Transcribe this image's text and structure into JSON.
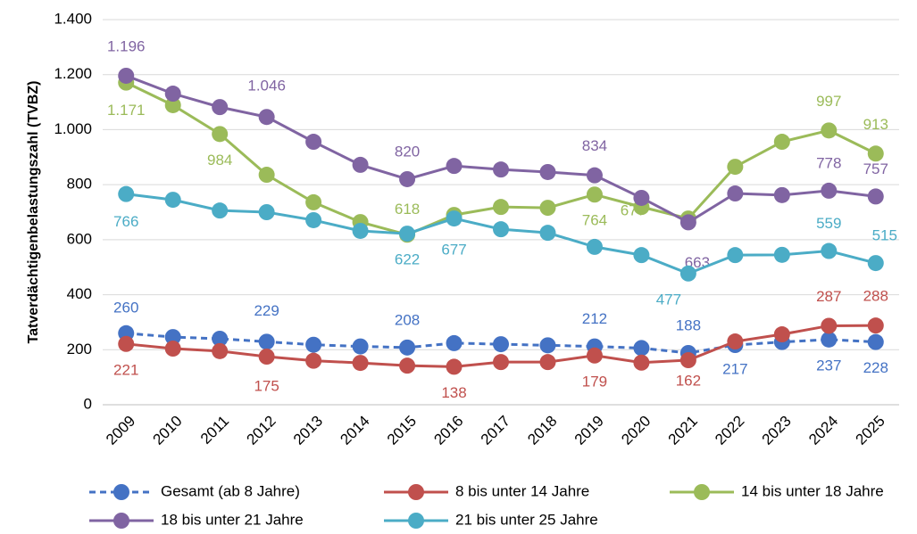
{
  "chart_data": {
    "type": "line",
    "y_label": "Tatverdächtigenbelastungszahl (TVBZ)",
    "categories": [
      "2009",
      "2010",
      "2011",
      "2012",
      "2013",
      "2014",
      "2015",
      "2016",
      "2017",
      "2018",
      "2019",
      "2020",
      "2021",
      "2022",
      "2023",
      "2024",
      "2025"
    ],
    "ylim": [
      0,
      1400
    ],
    "yticks": [
      0,
      200,
      400,
      600,
      800,
      {
        "value": 1000,
        "label": "1.000"
      },
      {
        "value": 1200,
        "label": "1.200"
      },
      {
        "value": 1400,
        "label": "1.400"
      }
    ],
    "grid": true,
    "legend": "bottom",
    "series": [
      {
        "name": "Gesamt (ab 8 Jahre)",
        "color": "#4472c4",
        "dashed": true,
        "values": [
          260,
          246,
          240,
          229,
          218,
          212,
          208,
          224,
          220,
          216,
          212,
          206,
          188,
          217,
          228,
          237,
          228
        ],
        "value_labels": [
          "260",
          null,
          null,
          "229",
          null,
          null,
          "208",
          null,
          null,
          null,
          "212",
          null,
          "188",
          "217",
          null,
          "237",
          "228"
        ]
      },
      {
        "name": "8 bis unter 14 Jahre",
        "color": "#c0504d",
        "values": [
          221,
          204,
          195,
          175,
          160,
          152,
          142,
          138,
          155,
          155,
          179,
          153,
          162,
          230,
          256,
          287,
          288
        ],
        "value_labels": [
          "221",
          null,
          null,
          "175",
          null,
          null,
          null,
          "138",
          null,
          null,
          "179",
          null,
          "162",
          null,
          null,
          "287",
          "288"
        ]
      },
      {
        "name": "14 bis unter 18 Jahre",
        "color": "#9bbb59",
        "values": [
          1171,
          1089,
          984,
          836,
          736,
          664,
          618,
          690,
          719,
          716,
          764,
          719,
          677,
          865,
          956,
          997,
          913
        ],
        "value_labels": [
          "1.171",
          null,
          "984",
          null,
          null,
          null,
          "618",
          null,
          null,
          null,
          "764",
          null,
          "677",
          null,
          null,
          "997",
          "913"
        ]
      },
      {
        "name": "18 bis unter 21 Jahre",
        "color": "#8064a2",
        "values": [
          1196,
          1131,
          1082,
          1046,
          956,
          872,
          820,
          868,
          855,
          846,
          834,
          752,
          663,
          768,
          762,
          778,
          757
        ],
        "value_labels": [
          "1.196",
          null,
          null,
          "1.046",
          null,
          null,
          "820",
          null,
          null,
          null,
          "834",
          null,
          "663",
          null,
          null,
          "778",
          "757"
        ]
      },
      {
        "name": "21 bis unter 25 Jahre",
        "color": "#4bacc6",
        "values": [
          766,
          745,
          706,
          700,
          671,
          632,
          622,
          677,
          638,
          625,
          574,
          544,
          477,
          544,
          545,
          559,
          515
        ],
        "value_labels": [
          "766",
          null,
          null,
          null,
          null,
          null,
          "622",
          "677",
          null,
          null,
          null,
          null,
          "477",
          null,
          null,
          "559",
          "515"
        ]
      }
    ]
  }
}
